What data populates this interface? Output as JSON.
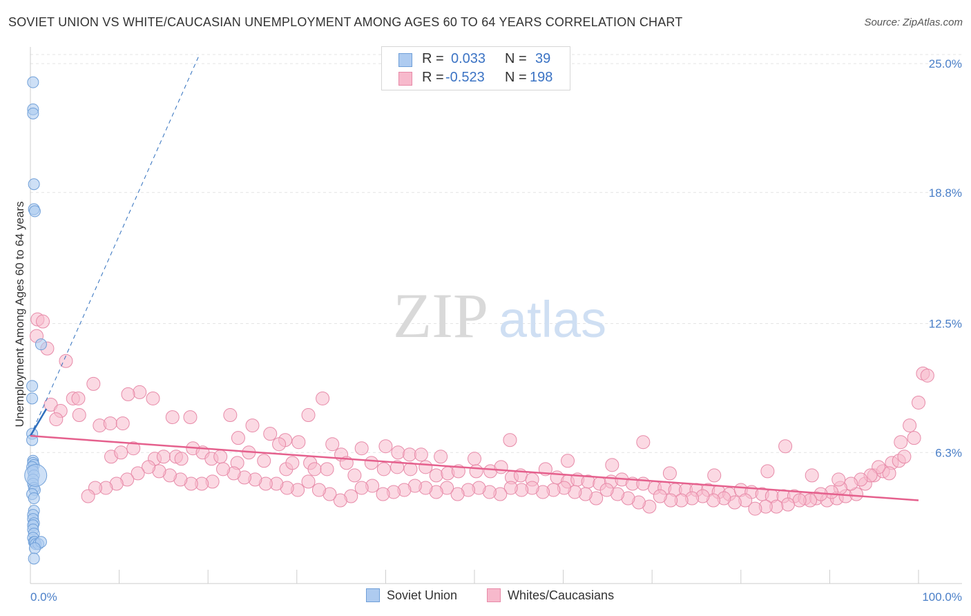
{
  "header": {
    "title": "SOVIET UNION VS WHITE/CAUCASIAN UNEMPLOYMENT AMONG AGES 60 TO 64 YEARS CORRELATION CHART",
    "source": "Source: ZipAtlas.com"
  },
  "watermark": {
    "zip": "ZIP",
    "atlas": "atlas"
  },
  "legend": {
    "rows": [
      {
        "r_label": "R =",
        "r_value": "0.033",
        "n_label": "N =",
        "n_value": "39",
        "color": "#aecbf0",
        "border": "#6f9fd8"
      },
      {
        "r_label": "R =",
        "r_value": "-0.523",
        "n_label": "N =",
        "n_value": "198",
        "color": "#f7b9cc",
        "border": "#e78aa8"
      }
    ]
  },
  "bottom_legend": {
    "items": [
      "Soviet Union",
      "Whites/Caucasians"
    ]
  },
  "colors": {
    "blue_fill": "#aecbf0",
    "blue_stroke": "#6f9fd8",
    "blue_line": "#2f6fbd",
    "pink_fill": "#f7b9cc",
    "pink_stroke": "#e78aa8",
    "pink_line": "#e5608d",
    "tick_text": "#4a7fc8",
    "grid": "#e3e3e3"
  },
  "chart_data": {
    "type": "scatter",
    "title": "SOVIET UNION VS WHITE/CAUCASIAN UNEMPLOYMENT AMONG AGES 60 TO 64 YEARS CORRELATION CHART",
    "xlabel": "",
    "ylabel": "Unemployment Among Ages 60 to 64 years",
    "xlim": [
      0,
      100
    ],
    "ylim": [
      0,
      25.6
    ],
    "x_tick_labels": [
      "0.0%",
      "100.0%"
    ],
    "y_ticks": [
      6.3,
      12.5,
      18.8,
      25.0
    ],
    "y_tick_labels": [
      "6.3%",
      "12.5%",
      "18.8%",
      "25.0%"
    ],
    "grid": "horizontal dashed",
    "legend_position": "top-center",
    "series": [
      {
        "name": "Soviet Union",
        "R": 0.033,
        "N": 39,
        "trend": {
          "x": [
            0,
            1.8
          ],
          "y": [
            7.1,
            8.4
          ],
          "extended": {
            "x": [
              0,
              19
            ],
            "y": [
              7.1,
              25.4
            ]
          }
        },
        "points": [
          [
            0.3,
            24.1
          ],
          [
            0.3,
            22.8
          ],
          [
            0.3,
            22.6
          ],
          [
            0.4,
            19.2
          ],
          [
            0.4,
            18.0
          ],
          [
            0.5,
            17.9
          ],
          [
            1.2,
            11.5
          ],
          [
            0.2,
            9.5
          ],
          [
            0.2,
            8.9
          ],
          [
            0.2,
            7.2
          ],
          [
            0.2,
            6.9
          ],
          [
            0.3,
            5.9
          ],
          [
            0.3,
            5.8
          ],
          [
            0.4,
            5.7
          ],
          [
            0.2,
            5.6
          ],
          [
            0.3,
            5.4
          ],
          [
            0.4,
            5.2
          ],
          [
            0.3,
            5.0
          ],
          [
            0.3,
            4.8
          ],
          [
            0.4,
            4.6
          ],
          [
            0.5,
            4.5
          ],
          [
            0.2,
            4.3
          ],
          [
            0.4,
            4.1
          ],
          [
            0.4,
            3.5
          ],
          [
            0.3,
            3.3
          ],
          [
            0.3,
            3.1
          ],
          [
            0.4,
            2.9
          ],
          [
            0.3,
            2.8
          ],
          [
            0.3,
            2.6
          ],
          [
            0.4,
            2.4
          ],
          [
            0.3,
            2.2
          ],
          [
            0.4,
            2.0
          ],
          [
            0.5,
            2.0
          ],
          [
            0.6,
            1.9
          ],
          [
            0.9,
            1.9
          ],
          [
            1.2,
            2.0
          ],
          [
            0.5,
            1.7
          ],
          [
            0.4,
            1.2
          ],
          [
            0.6,
            5.2
          ]
        ]
      },
      {
        "name": "Whites/Caucasians",
        "R": -0.523,
        "N": 198,
        "trend": {
          "x": [
            0,
            100
          ],
          "y": [
            7.1,
            4.0
          ]
        },
        "points": [
          [
            0.8,
            12.7
          ],
          [
            1.4,
            12.6
          ],
          [
            0.7,
            11.9
          ],
          [
            1.9,
            11.3
          ],
          [
            4.0,
            10.7
          ],
          [
            2.3,
            8.6
          ],
          [
            3.4,
            8.3
          ],
          [
            4.8,
            8.9
          ],
          [
            5.4,
            8.9
          ],
          [
            2.9,
            7.9
          ],
          [
            5.5,
            8.1
          ],
          [
            7.1,
            9.6
          ],
          [
            7.8,
            7.6
          ],
          [
            9.0,
            7.7
          ],
          [
            10.4,
            7.7
          ],
          [
            12.3,
            9.2
          ],
          [
            13.8,
            8.9
          ],
          [
            16.0,
            8.0
          ],
          [
            18.0,
            8.0
          ],
          [
            22.5,
            8.1
          ],
          [
            23.4,
            7.0
          ],
          [
            25.0,
            7.6
          ],
          [
            31.3,
            8.1
          ],
          [
            32.9,
            8.9
          ],
          [
            24.6,
            6.3
          ],
          [
            27.0,
            7.2
          ],
          [
            28.7,
            6.9
          ],
          [
            30.2,
            6.8
          ],
          [
            34.0,
            6.7
          ],
          [
            37.3,
            6.5
          ],
          [
            35.0,
            6.2
          ],
          [
            41.4,
            6.3
          ],
          [
            42.7,
            6.2
          ],
          [
            44.0,
            6.2
          ],
          [
            46.2,
            6.1
          ],
          [
            50.0,
            6.0
          ],
          [
            9.1,
            6.1
          ],
          [
            10.2,
            6.3
          ],
          [
            11.6,
            6.5
          ],
          [
            14.0,
            6.0
          ],
          [
            15.0,
            6.1
          ],
          [
            16.4,
            6.1
          ],
          [
            17.0,
            6.0
          ],
          [
            18.3,
            6.5
          ],
          [
            19.4,
            6.3
          ],
          [
            20.4,
            6.0
          ],
          [
            21.4,
            6.1
          ],
          [
            23.3,
            5.8
          ],
          [
            26.3,
            5.9
          ],
          [
            28.8,
            5.5
          ],
          [
            29.5,
            5.8
          ],
          [
            31.5,
            5.8
          ],
          [
            32.0,
            5.5
          ],
          [
            33.4,
            5.5
          ],
          [
            35.6,
            5.8
          ],
          [
            36.5,
            5.2
          ],
          [
            38.4,
            5.8
          ],
          [
            39.8,
            5.5
          ],
          [
            41.3,
            5.6
          ],
          [
            42.8,
            5.5
          ],
          [
            44.5,
            5.6
          ],
          [
            45.7,
            5.2
          ],
          [
            47.0,
            5.3
          ],
          [
            48.2,
            5.4
          ],
          [
            50.2,
            5.4
          ],
          [
            51.8,
            5.4
          ],
          [
            53.0,
            5.6
          ],
          [
            54.2,
            5.1
          ],
          [
            55.2,
            5.2
          ],
          [
            56.5,
            5.0
          ],
          [
            58.0,
            5.5
          ],
          [
            59.3,
            5.1
          ],
          [
            60.5,
            4.9
          ],
          [
            61.6,
            5.0
          ],
          [
            62.8,
            4.9
          ],
          [
            64.1,
            4.8
          ],
          [
            65.4,
            4.9
          ],
          [
            66.6,
            5.0
          ],
          [
            67.8,
            4.8
          ],
          [
            69.0,
            4.8
          ],
          [
            70.3,
            4.6
          ],
          [
            71.4,
            4.6
          ],
          [
            72.6,
            4.5
          ],
          [
            73.8,
            4.5
          ],
          [
            75.0,
            4.5
          ],
          [
            76.3,
            4.5
          ],
          [
            77.5,
            4.4
          ],
          [
            78.7,
            4.3
          ],
          [
            80.0,
            4.5
          ],
          [
            81.2,
            4.4
          ],
          [
            82.4,
            4.3
          ],
          [
            83.5,
            4.2
          ],
          [
            84.8,
            4.2
          ],
          [
            86.0,
            4.2
          ],
          [
            87.2,
            4.1
          ],
          [
            88.5,
            4.1
          ],
          [
            89.7,
            4.0
          ],
          [
            90.8,
            4.1
          ],
          [
            91.8,
            4.2
          ],
          [
            93.0,
            4.3
          ],
          [
            94.0,
            4.8
          ],
          [
            95.0,
            5.2
          ],
          [
            96.0,
            5.4
          ],
          [
            97.0,
            5.8
          ],
          [
            97.8,
            5.9
          ],
          [
            98.4,
            6.1
          ],
          [
            99.0,
            7.6
          ],
          [
            99.5,
            7.0
          ],
          [
            100.0,
            8.7
          ],
          [
            100.5,
            10.1
          ],
          [
            101.0,
            10.0
          ],
          [
            98.0,
            6.8
          ],
          [
            96.7,
            5.3
          ],
          [
            95.5,
            5.6
          ],
          [
            94.6,
            5.2
          ],
          [
            93.5,
            5.0
          ],
          [
            92.4,
            4.8
          ],
          [
            91.2,
            4.6
          ],
          [
            90.2,
            4.4
          ],
          [
            89.0,
            4.3
          ],
          [
            87.8,
            4.0
          ],
          [
            86.6,
            4.0
          ],
          [
            85.3,
            3.8
          ],
          [
            84.0,
            3.7
          ],
          [
            82.8,
            3.7
          ],
          [
            81.6,
            3.6
          ],
          [
            80.5,
            4.0
          ],
          [
            79.3,
            3.9
          ],
          [
            78.1,
            4.1
          ],
          [
            76.9,
            4.0
          ],
          [
            75.7,
            4.2
          ],
          [
            74.5,
            4.1
          ],
          [
            73.3,
            4.0
          ],
          [
            72.1,
            4.0
          ],
          [
            70.9,
            4.2
          ],
          [
            69.7,
            3.7
          ],
          [
            68.5,
            3.9
          ],
          [
            67.3,
            4.1
          ],
          [
            66.1,
            4.3
          ],
          [
            64.9,
            4.5
          ],
          [
            63.7,
            4.1
          ],
          [
            62.5,
            4.3
          ],
          [
            61.3,
            4.4
          ],
          [
            60.1,
            4.6
          ],
          [
            58.9,
            4.5
          ],
          [
            57.7,
            4.4
          ],
          [
            56.5,
            4.6
          ],
          [
            55.3,
            4.5
          ],
          [
            54.1,
            4.6
          ],
          [
            52.9,
            4.3
          ],
          [
            51.7,
            4.4
          ],
          [
            50.5,
            4.6
          ],
          [
            49.3,
            4.5
          ],
          [
            48.1,
            4.3
          ],
          [
            46.9,
            4.6
          ],
          [
            45.7,
            4.4
          ],
          [
            44.5,
            4.6
          ],
          [
            43.3,
            4.7
          ],
          [
            42.1,
            4.5
          ],
          [
            40.9,
            4.4
          ],
          [
            39.7,
            4.3
          ],
          [
            38.5,
            4.7
          ],
          [
            37.3,
            4.6
          ],
          [
            36.1,
            4.2
          ],
          [
            34.9,
            4.0
          ],
          [
            33.7,
            4.3
          ],
          [
            32.5,
            4.5
          ],
          [
            31.3,
            4.9
          ],
          [
            30.1,
            4.5
          ],
          [
            28.9,
            4.6
          ],
          [
            27.7,
            4.8
          ],
          [
            26.5,
            4.8
          ],
          [
            25.3,
            5.0
          ],
          [
            24.1,
            5.1
          ],
          [
            22.9,
            5.3
          ],
          [
            21.7,
            5.5
          ],
          [
            20.5,
            4.9
          ],
          [
            19.3,
            4.8
          ],
          [
            18.1,
            4.8
          ],
          [
            16.9,
            5.0
          ],
          [
            15.7,
            5.2
          ],
          [
            14.5,
            5.4
          ],
          [
            13.3,
            5.6
          ],
          [
            12.1,
            5.3
          ],
          [
            10.9,
            5.0
          ],
          [
            9.7,
            4.8
          ],
          [
            8.5,
            4.6
          ],
          [
            7.3,
            4.6
          ],
          [
            6.5,
            4.2
          ],
          [
            11.0,
            9.1
          ],
          [
            28.0,
            6.7
          ],
          [
            40.0,
            6.6
          ],
          [
            54.0,
            6.9
          ],
          [
            69.0,
            6.8
          ],
          [
            85.0,
            6.6
          ],
          [
            60.5,
            5.9
          ],
          [
            65.5,
            5.7
          ],
          [
            72.0,
            5.3
          ],
          [
            77.0,
            5.2
          ],
          [
            83.0,
            5.4
          ],
          [
            88.0,
            5.2
          ],
          [
            91.0,
            5.0
          ]
        ]
      }
    ]
  }
}
